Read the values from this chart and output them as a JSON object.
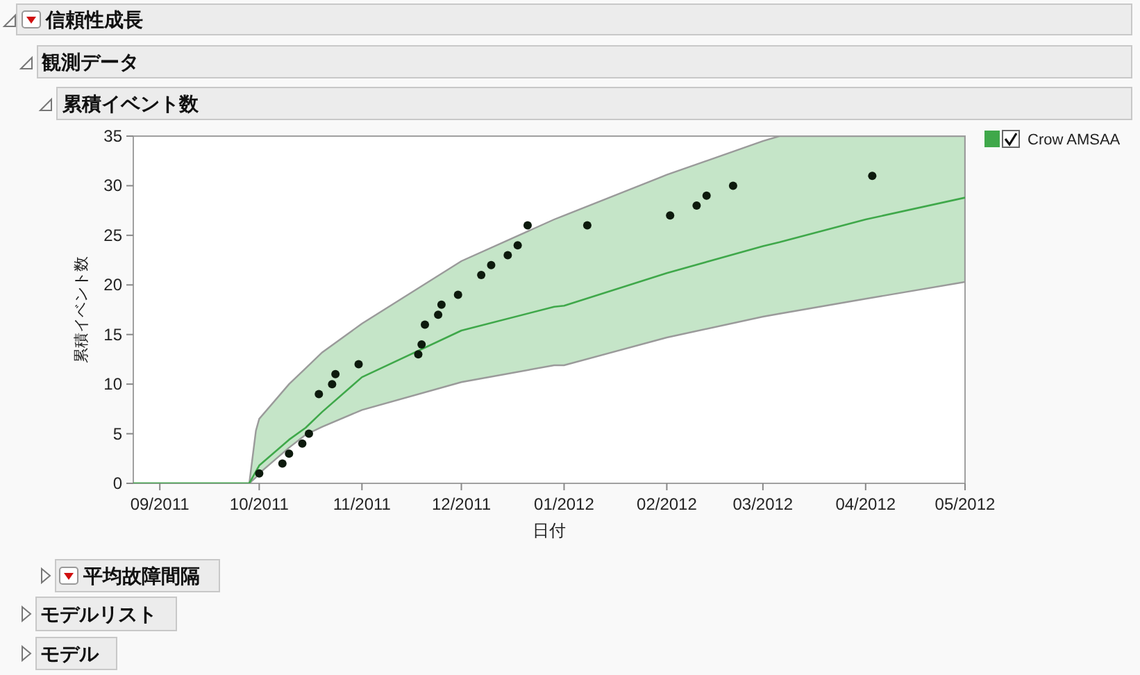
{
  "chart_data": {
    "type": "scatter",
    "title": "累積イベント数",
    "xlabel": "日付",
    "ylabel": "累積イベント数",
    "annotations": [
      "信頼性成長",
      "観測データ",
      "平均故障間隔",
      "モデルリスト",
      "モデル"
    ],
    "xlim": [
      "2011-08-24",
      "2012-05-01"
    ],
    "ylim": [
      0,
      35
    ],
    "xticks": [
      {
        "value": "2011-09-01",
        "label": "09/2011"
      },
      {
        "value": "2011-10-01",
        "label": "10/2011"
      },
      {
        "value": "2011-11-01",
        "label": "11/2011"
      },
      {
        "value": "2011-12-01",
        "label": "12/2011"
      },
      {
        "value": "2012-01-01",
        "label": "01/2012"
      },
      {
        "value": "2012-02-01",
        "label": "02/2012"
      },
      {
        "value": "2012-03-01",
        "label": "03/2012"
      },
      {
        "value": "2012-04-01",
        "label": "04/2012"
      },
      {
        "value": "2012-05-01",
        "label": "05/2012"
      }
    ],
    "yticks": [
      0,
      5,
      10,
      15,
      20,
      25,
      30,
      35
    ],
    "grid": false,
    "legend": "top right",
    "series": [
      {
        "color": "#0d1a0d",
        "marker": "circle",
        "x": [
          "2011-10-01",
          "2011-10-08",
          "2011-10-10",
          "2011-10-14",
          "2011-10-16",
          "2011-10-19",
          "2011-10-23",
          "2011-10-24",
          "2011-10-31",
          "2011-11-18",
          "2011-11-19",
          "2011-11-20",
          "2011-11-24",
          "2011-11-25",
          "2011-11-30",
          "2011-12-07",
          "2011-12-10",
          "2011-12-15",
          "2011-12-18",
          "2011-12-21",
          "2012-01-08",
          "2012-02-02",
          "2012-02-10",
          "2012-02-13",
          "2012-02-21",
          "2012-04-03"
        ],
        "values": [
          1,
          2,
          3,
          4,
          5,
          9,
          10,
          11,
          12,
          13,
          14,
          16,
          17,
          18,
          19,
          21,
          22,
          23,
          24,
          26,
          26,
          27,
          28,
          29,
          30,
          31
        ]
      },
      {
        "type": "line",
        "name": "Crow AMSAA",
        "color": "#3fa84a",
        "line_style": "solid",
        "x": [
          "2011-08-24",
          "2011-09-28",
          "2011-09-30",
          "2011-10-01",
          "2011-10-10",
          "2011-10-15",
          "2011-10-20",
          "2011-11-01",
          "2011-12-01",
          "2011-12-29",
          "2012-01-01",
          "2012-02-01",
          "2012-03-01",
          "2012-03-06",
          "2012-04-01",
          "2012-05-01"
        ],
        "values": [
          0,
          0,
          1.2,
          1.8,
          4.4,
          5.6,
          7.2,
          10.7,
          15.4,
          17.8,
          17.9,
          21.2,
          23.9,
          24.3,
          26.6,
          28.8
        ],
        "lower": [
          0,
          0,
          0.6,
          1.0,
          3.6,
          4.9,
          5.7,
          7.4,
          10.2,
          11.9,
          11.9,
          14.7,
          16.8,
          17.1,
          18.6,
          20.3
        ],
        "upper": [
          0,
          0,
          5.3,
          6.5,
          10,
          11.6,
          13.2,
          16.1,
          22.4,
          26.6,
          27.0,
          31.1,
          34.5,
          35,
          35,
          35
        ]
      }
    ]
  }
}
